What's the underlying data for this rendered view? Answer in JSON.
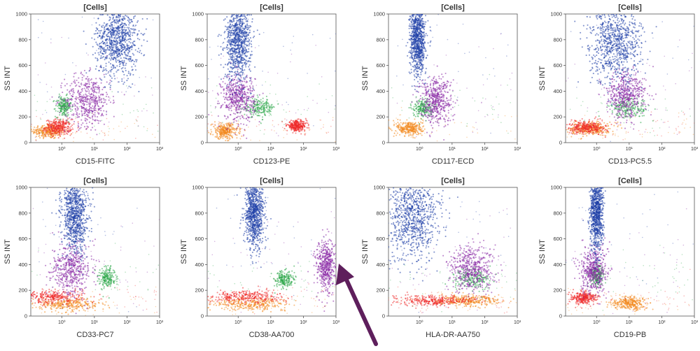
{
  "chart_data": {
    "type": "scatter",
    "x_scale": "log",
    "x_ticks": [
      "10⁰",
      "10¹",
      "10²",
      "10³"
    ],
    "y_ticks": [
      "0",
      "200",
      "400",
      "600",
      "800",
      "1000"
    ],
    "ylim": [
      0,
      1000
    ],
    "ylabel": "SS INT",
    "grid": false,
    "legend": "none",
    "population_colors": {
      "granulocytes": "#1f3fa8",
      "monocytes": "#8a2aa5",
      "blasts": "#2ea84a",
      "lymphocytes": "#ee2a2a",
      "debris": "#f2891e"
    },
    "panels": [
      {
        "title": "[Cells]",
        "xlabel": "CD15-FITC",
        "clusters": [
          {
            "population": "granulocytes",
            "x_center_log": 1.7,
            "x_spread_log": 0.32,
            "y_center": 800,
            "y_spread": 140
          },
          {
            "population": "monocytes",
            "x_center_log": 0.8,
            "x_spread_log": 0.35,
            "y_center": 330,
            "y_spread": 100
          },
          {
            "population": "blasts",
            "x_center_log": 0.05,
            "x_spread_log": 0.12,
            "y_center": 280,
            "y_spread": 40
          },
          {
            "population": "lymphocytes",
            "x_center_log": -0.1,
            "x_spread_log": 0.2,
            "y_center": 120,
            "y_spread": 30
          },
          {
            "population": "debris",
            "x_center_log": -0.4,
            "x_spread_log": 0.25,
            "y_center": 90,
            "y_spread": 30
          }
        ]
      },
      {
        "title": "[Cells]",
        "xlabel": "CD123-PE",
        "clusters": [
          {
            "population": "granulocytes",
            "x_center_log": 0.0,
            "x_spread_log": 0.2,
            "y_center": 790,
            "y_spread": 150
          },
          {
            "population": "monocytes",
            "x_center_log": 0.0,
            "x_spread_log": 0.25,
            "y_center": 350,
            "y_spread": 90
          },
          {
            "population": "blasts",
            "x_center_log": 0.65,
            "x_spread_log": 0.25,
            "y_center": 270,
            "y_spread": 35
          },
          {
            "population": "lymphocytes",
            "x_center_log": 1.8,
            "x_spread_log": 0.15,
            "y_center": 130,
            "y_spread": 20
          },
          {
            "population": "debris",
            "x_center_log": -0.4,
            "x_spread_log": 0.2,
            "y_center": 90,
            "y_spread": 30
          }
        ]
      },
      {
        "title": "[Cells]",
        "xlabel": "CD117-ECD",
        "clusters": [
          {
            "population": "granulocytes",
            "x_center_log": -0.05,
            "x_spread_log": 0.12,
            "y_center": 800,
            "y_spread": 140
          },
          {
            "population": "monocytes",
            "x_center_log": 0.5,
            "x_spread_log": 0.25,
            "y_center": 330,
            "y_spread": 90
          },
          {
            "population": "blasts",
            "x_center_log": 0.1,
            "x_spread_log": 0.15,
            "y_center": 270,
            "y_spread": 35
          },
          {
            "population": "debris",
            "x_center_log": -0.3,
            "x_spread_log": 0.2,
            "y_center": 110,
            "y_spread": 30
          }
        ]
      },
      {
        "title": "[Cells]",
        "xlabel": "CD13-PC5.5",
        "clusters": [
          {
            "population": "granulocytes",
            "x_center_log": 0.6,
            "x_spread_log": 0.4,
            "y_center": 780,
            "y_spread": 160
          },
          {
            "population": "monocytes",
            "x_center_log": 0.9,
            "x_spread_log": 0.3,
            "y_center": 370,
            "y_spread": 90
          },
          {
            "population": "blasts",
            "x_center_log": 1.0,
            "x_spread_log": 0.3,
            "y_center": 270,
            "y_spread": 40
          },
          {
            "population": "lymphocytes",
            "x_center_log": -0.3,
            "x_spread_log": 0.3,
            "y_center": 120,
            "y_spread": 25
          },
          {
            "population": "debris",
            "x_center_log": -0.2,
            "x_spread_log": 0.3,
            "y_center": 110,
            "y_spread": 25
          }
        ]
      },
      {
        "title": "[Cells]",
        "xlabel": "CD33-PC7",
        "clusters": [
          {
            "population": "granulocytes",
            "x_center_log": 0.4,
            "x_spread_log": 0.2,
            "y_center": 790,
            "y_spread": 150
          },
          {
            "population": "monocytes",
            "x_center_log": 0.3,
            "x_spread_log": 0.3,
            "y_center": 360,
            "y_spread": 100
          },
          {
            "population": "blasts",
            "x_center_log": 1.4,
            "x_spread_log": 0.12,
            "y_center": 300,
            "y_spread": 40
          },
          {
            "population": "lymphocytes",
            "x_center_log": -0.3,
            "x_spread_log": 0.5,
            "y_center": 150,
            "y_spread": 25
          },
          {
            "population": "debris",
            "x_center_log": 0.2,
            "x_spread_log": 0.5,
            "y_center": 90,
            "y_spread": 25
          }
        ]
      },
      {
        "title": "[Cells]",
        "xlabel": "CD38-AA700",
        "clusters": [
          {
            "population": "granulocytes",
            "x_center_log": 0.5,
            "x_spread_log": 0.15,
            "y_center": 800,
            "y_spread": 140
          },
          {
            "population": "monocytes",
            "x_center_log": 2.7,
            "x_spread_log": 0.15,
            "y_center": 380,
            "y_spread": 100
          },
          {
            "population": "blasts",
            "x_center_log": 1.4,
            "x_spread_log": 0.15,
            "y_center": 280,
            "y_spread": 35
          },
          {
            "population": "lymphocytes",
            "x_center_log": 0.2,
            "x_spread_log": 0.6,
            "y_center": 150,
            "y_spread": 25
          },
          {
            "population": "debris",
            "x_center_log": 0.4,
            "x_spread_log": 0.6,
            "y_center": 95,
            "y_spread": 25
          }
        ]
      },
      {
        "title": "[Cells]",
        "xlabel": "HLA-DR-AA750",
        "clusters": [
          {
            "population": "granulocytes",
            "x_center_log": -0.2,
            "x_spread_log": 0.4,
            "y_center": 780,
            "y_spread": 170
          },
          {
            "population": "monocytes",
            "x_center_log": 1.6,
            "x_spread_log": 0.35,
            "y_center": 370,
            "y_spread": 90
          },
          {
            "population": "blasts",
            "x_center_log": 1.6,
            "x_spread_log": 0.3,
            "y_center": 290,
            "y_spread": 40
          },
          {
            "population": "lymphocytes",
            "x_center_log": 0.4,
            "x_spread_log": 0.6,
            "y_center": 120,
            "y_spread": 20
          },
          {
            "population": "debris",
            "x_center_log": 1.5,
            "x_spread_log": 0.5,
            "y_center": 120,
            "y_spread": 20
          }
        ]
      },
      {
        "title": "[Cells]",
        "xlabel": "CD19-PB",
        "clusters": [
          {
            "population": "granulocytes",
            "x_center_log": 0.0,
            "x_spread_log": 0.1,
            "y_center": 790,
            "y_spread": 150
          },
          {
            "population": "monocytes",
            "x_center_log": -0.1,
            "x_spread_log": 0.2,
            "y_center": 350,
            "y_spread": 90
          },
          {
            "population": "blasts",
            "x_center_log": 0.0,
            "x_spread_log": 0.1,
            "y_center": 320,
            "y_spread": 40
          },
          {
            "population": "lymphocytes",
            "x_center_log": -0.4,
            "x_spread_log": 0.2,
            "y_center": 140,
            "y_spread": 25
          },
          {
            "population": "debris",
            "x_center_log": 1.0,
            "x_spread_log": 0.25,
            "y_center": 100,
            "y_spread": 25
          }
        ]
      }
    ],
    "annotation": {
      "type": "arrow",
      "color": "#5e1f5c",
      "points_to_panel": "CD38-AA700",
      "target": "monocytes"
    }
  }
}
